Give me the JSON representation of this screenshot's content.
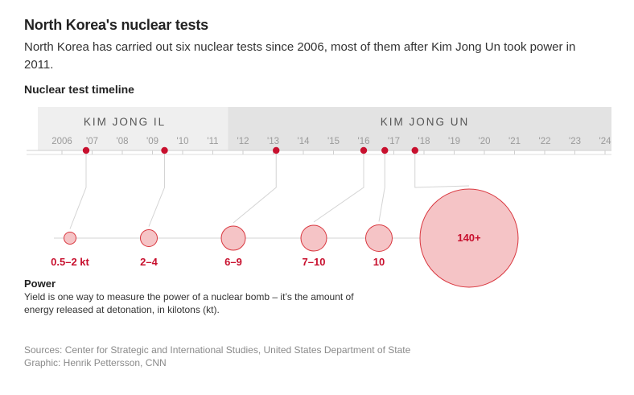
{
  "header": {
    "title": "North Korea's nuclear tests",
    "subtitle": "North Korea has carried out six nuclear tests since 2006, most of them after Kim Jong Un took power in 2011.",
    "section_label": "Nuclear test timeline"
  },
  "colors": {
    "accent": "#c8102e",
    "bubble_fill": "#f5c4c6",
    "bubble_stroke": "#d9363e",
    "era_il_bg": "#efefef",
    "era_un_bg": "#e3e3e3",
    "tick_text": "#9a9a9a",
    "era_text": "#555555",
    "line": "#d0d0d0"
  },
  "chart_data": {
    "type": "timeline-bubble",
    "x_axis": {
      "range": [
        2006,
        2024.3
      ],
      "ticks": [
        {
          "value": 2006,
          "label": "2006"
        },
        {
          "value": 2007,
          "label": "'07"
        },
        {
          "value": 2008,
          "label": "'08"
        },
        {
          "value": 2009,
          "label": "'09"
        },
        {
          "value": 2010,
          "label": "'10"
        },
        {
          "value": 2011,
          "label": "'11"
        },
        {
          "value": 2012,
          "label": "'12"
        },
        {
          "value": 2013,
          "label": "'13"
        },
        {
          "value": 2014,
          "label": "'14"
        },
        {
          "value": 2015,
          "label": "'15"
        },
        {
          "value": 2016,
          "label": "'16"
        },
        {
          "value": 2017,
          "label": "'17"
        },
        {
          "value": 2018,
          "label": "'18"
        },
        {
          "value": 2019,
          "label": "'19"
        },
        {
          "value": 2020,
          "label": "'20"
        },
        {
          "value": 2021,
          "label": "'21"
        },
        {
          "value": 2022,
          "label": "'22"
        },
        {
          "value": 2023,
          "label": "'23"
        },
        {
          "value": 2024,
          "label": "'24"
        }
      ]
    },
    "eras": [
      {
        "name": "KIM JONG IL",
        "start": 2005.2,
        "end": 2011.5
      },
      {
        "name": "KIM JONG UN",
        "start": 2011.5,
        "end": 2024.3
      }
    ],
    "tests": [
      {
        "date": 2006.8,
        "yield_label": "0.5–2 kt",
        "yield_kt": 1
      },
      {
        "date": 2009.4,
        "yield_label": "2–4",
        "yield_kt": 3
      },
      {
        "date": 2013.1,
        "yield_label": "6–9",
        "yield_kt": 7.5
      },
      {
        "date": 2016.0,
        "yield_label": "7–10",
        "yield_kt": 8.5
      },
      {
        "date": 2016.7,
        "yield_label": "10",
        "yield_kt": 10
      },
      {
        "date": 2017.7,
        "yield_label": "140+",
        "yield_kt": 140
      }
    ]
  },
  "power": {
    "title": "Power",
    "description": "Yield is one way to measure the power of a nuclear bomb – it’s the amount of energy released at detonation, in kilotons (kt)."
  },
  "footer": {
    "sources": "Sources: Center for Strategic and International Studies, United States Department of State",
    "credit": "Graphic: Henrik Pettersson, CNN"
  }
}
